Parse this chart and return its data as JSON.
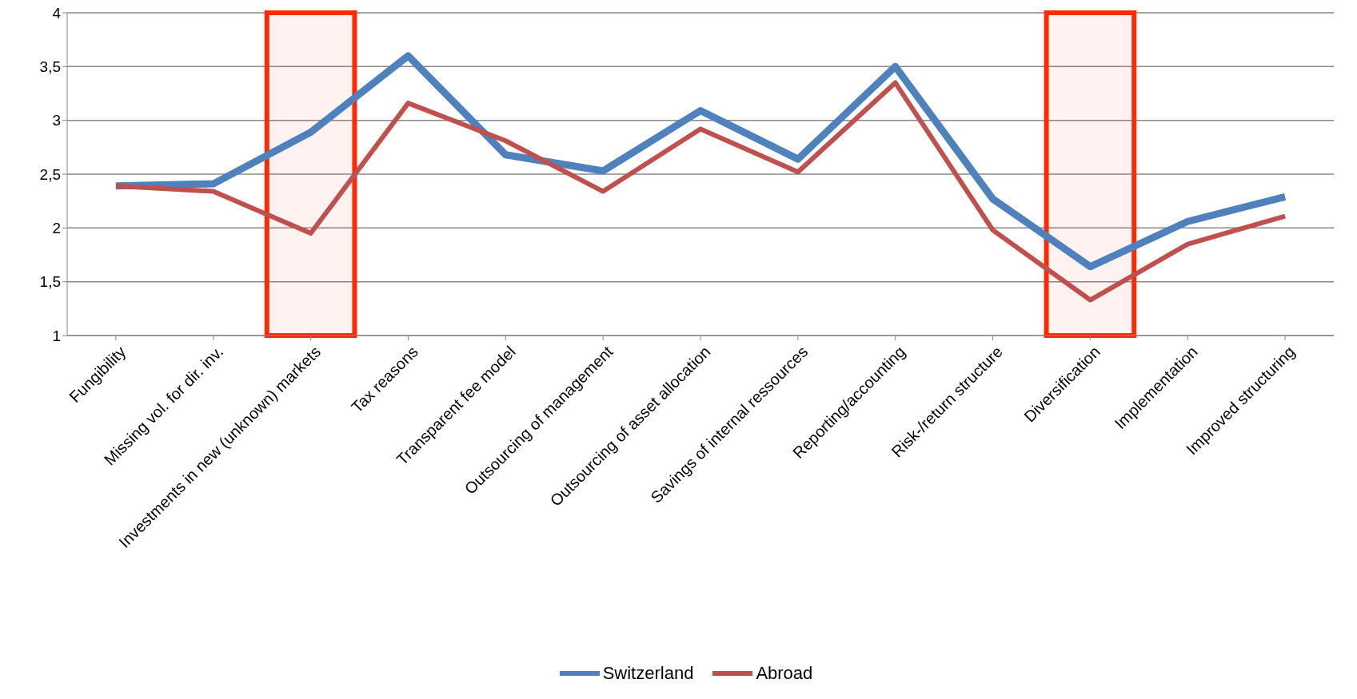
{
  "chart_data": {
    "type": "line",
    "categories": [
      "Fungibility",
      "Missing vol. for dir. inv.",
      "Investments in new (unknown) markets",
      "Tax reasons",
      "Transparent fee model",
      "Outsourcing of management",
      "Outsourcing of asset allocation",
      "Savings of internal ressources",
      "Reporting/accounting",
      "Risk-/return structure",
      "Diversification",
      "Implementation",
      "Improved structuring"
    ],
    "series": [
      {
        "name": "Switzerland",
        "color": "#4f81bd",
        "values": [
          2.39,
          2.41,
          2.89,
          3.6,
          2.68,
          2.53,
          3.09,
          2.64,
          3.5,
          2.27,
          1.64,
          2.06,
          2.29
        ]
      },
      {
        "name": "Abroad",
        "color": "#c0504d",
        "values": [
          2.39,
          2.34,
          1.95,
          3.16,
          2.81,
          2.34,
          2.92,
          2.52,
          3.35,
          1.98,
          1.33,
          1.85,
          2.11
        ]
      }
    ],
    "ylim": [
      1,
      4
    ],
    "yticks": [
      1,
      {
        "value": 1.5,
        "label": "1,5"
      },
      2,
      {
        "value": 2.5,
        "label": "2,5"
      },
      3,
      {
        "value": 3.5,
        "label": "3,5"
      },
      4
    ],
    "grid": "y",
    "legend": "bottom",
    "marker": "none",
    "line_style": "solid",
    "bands": [
      {
        "axis": "x",
        "from": "Investments in new (unknown) markets",
        "to": "Investments in new (unknown) markets",
        "color": "#ff2a00"
      },
      {
        "axis": "x",
        "from": "Diversification",
        "to": "Diversification",
        "color": "#ff2a00"
      }
    ]
  }
}
